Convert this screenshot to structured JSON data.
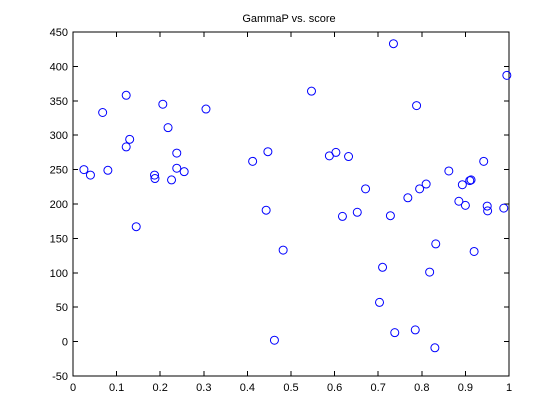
{
  "chart_data": {
    "type": "scatter",
    "title": "GammaP vs. score",
    "xlabel": "",
    "ylabel": "",
    "xlim": [
      0,
      1
    ],
    "ylim": [
      -50,
      450
    ],
    "xticks": [
      0,
      0.1,
      0.2,
      0.3,
      0.4,
      0.5,
      0.6,
      0.7,
      0.8,
      0.9,
      1
    ],
    "xtick_labels": [
      "0",
      "0.1",
      "0.2",
      "0.3",
      "0.4",
      "0.5",
      "0.6",
      "0.7",
      "0.8",
      "0.9",
      "1"
    ],
    "yticks": [
      -50,
      0,
      50,
      100,
      150,
      200,
      250,
      300,
      350,
      400,
      450
    ],
    "ytick_labels": [
      "-50",
      "0",
      "50",
      "100",
      "150",
      "200",
      "250",
      "300",
      "350",
      "400",
      "450"
    ],
    "grid": false,
    "marker_color": "#0000ff",
    "series": [
      {
        "points": [
          [
            0.025,
            250
          ],
          [
            0.04,
            242
          ],
          [
            0.068,
            333
          ],
          [
            0.08,
            249
          ],
          [
            0.122,
            358
          ],
          [
            0.122,
            283
          ],
          [
            0.13,
            294
          ],
          [
            0.145,
            167
          ],
          [
            0.187,
            242
          ],
          [
            0.188,
            237
          ],
          [
            0.206,
            345
          ],
          [
            0.218,
            311
          ],
          [
            0.226,
            235
          ],
          [
            0.238,
            274
          ],
          [
            0.238,
            252
          ],
          [
            0.255,
            247
          ],
          [
            0.305,
            338
          ],
          [
            0.412,
            262
          ],
          [
            0.443,
            191
          ],
          [
            0.447,
            276
          ],
          [
            0.462,
            2
          ],
          [
            0.482,
            133
          ],
          [
            0.547,
            364
          ],
          [
            0.588,
            270
          ],
          [
            0.603,
            275
          ],
          [
            0.618,
            182
          ],
          [
            0.632,
            269
          ],
          [
            0.652,
            188
          ],
          [
            0.671,
            222
          ],
          [
            0.703,
            57
          ],
          [
            0.71,
            108
          ],
          [
            0.728,
            183
          ],
          [
            0.735,
            433
          ],
          [
            0.738,
            13
          ],
          [
            0.768,
            209
          ],
          [
            0.785,
            17
          ],
          [
            0.788,
            343
          ],
          [
            0.795,
            222
          ],
          [
            0.81,
            229
          ],
          [
            0.818,
            101
          ],
          [
            0.83,
            -9
          ],
          [
            0.832,
            142
          ],
          [
            0.862,
            248
          ],
          [
            0.885,
            204
          ],
          [
            0.893,
            228
          ],
          [
            0.9,
            198
          ],
          [
            0.91,
            234
          ],
          [
            0.913,
            235
          ],
          [
            0.92,
            131
          ],
          [
            0.942,
            262
          ],
          [
            0.95,
            197
          ],
          [
            0.951,
            190
          ],
          [
            0.988,
            194
          ],
          [
            0.995,
            387
          ]
        ]
      }
    ]
  }
}
